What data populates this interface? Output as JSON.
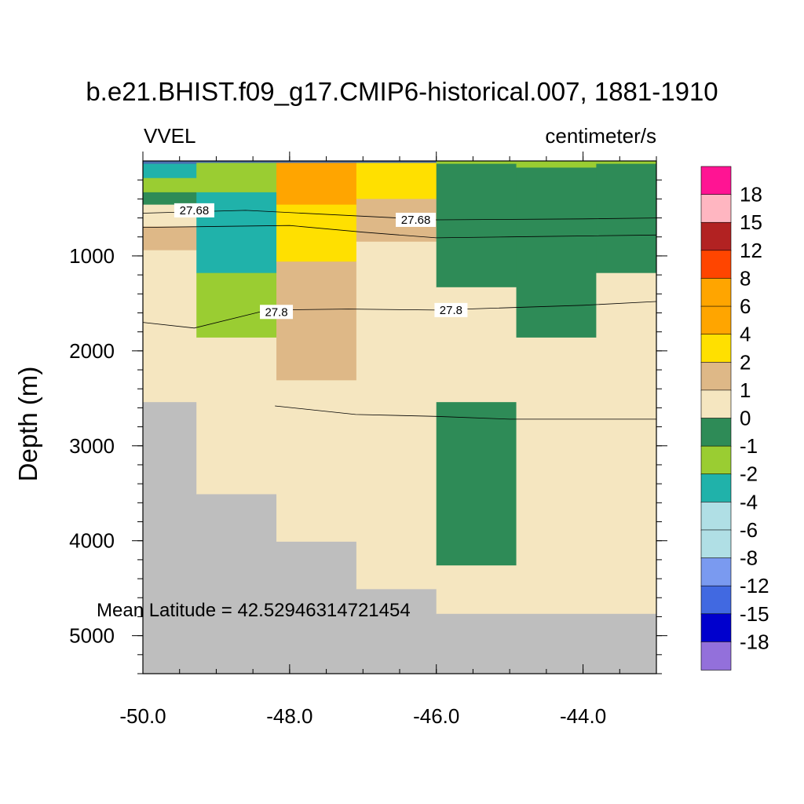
{
  "title": "b.e21.BHIST.f09_g17.CMIP6-historical.007, 1881-1910",
  "variable": "VVEL",
  "units": "centimeter/s",
  "footnote": "Mean Latitude = 42.52946314721454",
  "chart_data": {
    "type": "heatmap",
    "title": "b.e21.BHIST.f09_g17.CMIP6-historical.007, 1881-1910",
    "xlabel": "",
    "ylabel": "Depth (m)",
    "xlim": [
      -50.0,
      -43.0
    ],
    "ylim": [
      0,
      5400
    ],
    "y_reversed": true,
    "x_ticks": [
      -50.0,
      -48.0,
      -46.0,
      -44.0
    ],
    "x_tick_labels": [
      "-50.0",
      "-48.0",
      "-46.0",
      "-44.0"
    ],
    "y_ticks": [
      1000,
      2000,
      3000,
      4000,
      5000
    ],
    "y_tick_labels": [
      "1000",
      "2000",
      "3000",
      "4000",
      "5000"
    ],
    "x_minor_step": 0.5,
    "y_minor_step": 200,
    "colorbar": {
      "colors": [
        "#9370db",
        "#0000cd",
        "#4169e1",
        "#7a9af0",
        "#b0dfe5",
        "#b0dfe5",
        "#20b2aa",
        "#9acd32",
        "#2e8b57",
        "#f5e6c0",
        "#deb887",
        "#ffe000",
        "#ffa500",
        "#ffa500",
        "#ff4500",
        "#b22222",
        "#ffb6c1",
        "#ff1493"
      ],
      "labels": [
        "-18",
        "-15",
        "-12",
        "-8",
        "-6",
        "-4",
        "-2",
        "-1",
        "0",
        "1",
        "2",
        "4",
        "6",
        "8",
        "12",
        "15",
        "18"
      ]
    },
    "missing_color": "#bebebe",
    "cells": [
      {
        "x0": -50.0,
        "x1": -49.27,
        "d0": 0,
        "d1": 30,
        "c": "#4a6fb0"
      },
      {
        "x0": -50.0,
        "x1": -49.27,
        "d0": 30,
        "d1": 180,
        "c": "#20b2aa"
      },
      {
        "x0": -50.0,
        "x1": -49.27,
        "d0": 180,
        "d1": 330,
        "c": "#9acd32"
      },
      {
        "x0": -50.0,
        "x1": -49.27,
        "d0": 330,
        "d1": 460,
        "c": "#2e8b57"
      },
      {
        "x0": -50.0,
        "x1": -49.27,
        "d0": 460,
        "d1": 690,
        "c": "#f5e6c0"
      },
      {
        "x0": -50.0,
        "x1": -49.27,
        "d0": 690,
        "d1": 940,
        "c": "#deb887"
      },
      {
        "x0": -50.0,
        "x1": -49.27,
        "d0": 940,
        "d1": 2540,
        "c": "#f5e6c0"
      },
      {
        "x0": -50.0,
        "x1": -49.27,
        "d0": 2540,
        "d1": 5400,
        "c": "#bebebe"
      },
      {
        "x0": -49.27,
        "x1": -48.18,
        "d0": 0,
        "d1": 20,
        "c": "#4a6fb0"
      },
      {
        "x0": -49.27,
        "x1": -48.18,
        "d0": 20,
        "d1": 330,
        "c": "#9acd32"
      },
      {
        "x0": -49.27,
        "x1": -48.18,
        "d0": 330,
        "d1": 1180,
        "c": "#20b2aa"
      },
      {
        "x0": -49.27,
        "x1": -48.18,
        "d0": 1180,
        "d1": 1860,
        "c": "#9acd32"
      },
      {
        "x0": -49.27,
        "x1": -48.18,
        "d0": 1860,
        "d1": 3510,
        "c": "#f5e6c0"
      },
      {
        "x0": -49.27,
        "x1": -48.18,
        "d0": 3510,
        "d1": 5400,
        "c": "#bebebe"
      },
      {
        "x0": -48.18,
        "x1": -47.09,
        "d0": 0,
        "d1": 20,
        "c": "#4a6fb0"
      },
      {
        "x0": -48.18,
        "x1": -47.09,
        "d0": 20,
        "d1": 460,
        "c": "#ffa500"
      },
      {
        "x0": -48.18,
        "x1": -47.09,
        "d0": 460,
        "d1": 1060,
        "c": "#ffe000"
      },
      {
        "x0": -48.18,
        "x1": -47.09,
        "d0": 1060,
        "d1": 2310,
        "c": "#deb887"
      },
      {
        "x0": -48.18,
        "x1": -47.09,
        "d0": 2310,
        "d1": 4010,
        "c": "#f5e6c0"
      },
      {
        "x0": -48.18,
        "x1": -47.09,
        "d0": 4010,
        "d1": 5400,
        "c": "#bebebe"
      },
      {
        "x0": -47.09,
        "x1": -46.0,
        "d0": 0,
        "d1": 20,
        "c": "#4a6fb0"
      },
      {
        "x0": -47.09,
        "x1": -46.0,
        "d0": 20,
        "d1": 400,
        "c": "#ffe000"
      },
      {
        "x0": -47.09,
        "x1": -46.0,
        "d0": 400,
        "d1": 850,
        "c": "#deb887"
      },
      {
        "x0": -47.09,
        "x1": -46.0,
        "d0": 850,
        "d1": 4510,
        "c": "#f5e6c0"
      },
      {
        "x0": -47.09,
        "x1": -46.0,
        "d0": 4510,
        "d1": 5400,
        "c": "#bebebe"
      },
      {
        "x0": -46.0,
        "x1": -44.91,
        "d0": 0,
        "d1": 30,
        "c": "#9acd32"
      },
      {
        "x0": -46.0,
        "x1": -44.91,
        "d0": 30,
        "d1": 1330,
        "c": "#2e8b57"
      },
      {
        "x0": -46.0,
        "x1": -44.91,
        "d0": 1330,
        "d1": 2540,
        "c": "#f5e6c0"
      },
      {
        "x0": -46.0,
        "x1": -44.91,
        "d0": 2540,
        "d1": 4260,
        "c": "#2e8b57"
      },
      {
        "x0": -46.0,
        "x1": -44.91,
        "d0": 4260,
        "d1": 4770,
        "c": "#f5e6c0"
      },
      {
        "x0": -46.0,
        "x1": -44.91,
        "d0": 4770,
        "d1": 5400,
        "c": "#bebebe"
      },
      {
        "x0": -44.91,
        "x1": -43.82,
        "d0": 0,
        "d1": 70,
        "c": "#9acd32"
      },
      {
        "x0": -44.91,
        "x1": -43.82,
        "d0": 70,
        "d1": 1860,
        "c": "#2e8b57"
      },
      {
        "x0": -44.91,
        "x1": -43.82,
        "d0": 1860,
        "d1": 4770,
        "c": "#f5e6c0"
      },
      {
        "x0": -44.91,
        "x1": -43.82,
        "d0": 4770,
        "d1": 5400,
        "c": "#bebebe"
      },
      {
        "x0": -43.82,
        "x1": -43.0,
        "d0": 0,
        "d1": 30,
        "c": "#9acd32"
      },
      {
        "x0": -43.82,
        "x1": -43.0,
        "d0": 30,
        "d1": 1180,
        "c": "#2e8b57"
      },
      {
        "x0": -43.82,
        "x1": -43.0,
        "d0": 1180,
        "d1": 4770,
        "c": "#f5e6c0"
      },
      {
        "x0": -43.82,
        "x1": -43.0,
        "d0": 4770,
        "d1": 5400,
        "c": "#bebebe"
      }
    ],
    "contours": [
      {
        "level": "27.68",
        "points": [
          [
            -50.0,
            550
          ],
          [
            -48.6,
            520
          ],
          [
            -46.0,
            620
          ],
          [
            -44.0,
            610
          ],
          [
            -43.0,
            600
          ]
        ]
      },
      {
        "level": "",
        "points": [
          [
            -50.0,
            700
          ],
          [
            -48.0,
            680
          ],
          [
            -47.0,
            750
          ],
          [
            -46.0,
            810
          ],
          [
            -45.0,
            800
          ],
          [
            -43.0,
            780
          ]
        ]
      },
      {
        "level": "27.8",
        "points": [
          [
            -50.0,
            1700
          ],
          [
            -49.3,
            1760
          ],
          [
            -48.3,
            1570
          ],
          [
            -47.2,
            1560
          ],
          [
            -46.0,
            1570
          ],
          [
            -44.0,
            1520
          ],
          [
            -43.0,
            1480
          ]
        ]
      },
      {
        "level": "",
        "points": [
          [
            -48.2,
            2580
          ],
          [
            -47.1,
            2670
          ],
          [
            -46.0,
            2690
          ],
          [
            -45.0,
            2720
          ],
          [
            -43.0,
            2720
          ]
        ]
      }
    ],
    "contour_labels": [
      {
        "text": "27.68",
        "x": -49.3,
        "d": 520
      },
      {
        "text": "27.68",
        "x": -46.28,
        "d": 620
      },
      {
        "text": "27.8",
        "x": -48.18,
        "d": 1590
      },
      {
        "text": "27.8",
        "x": -45.8,
        "d": 1570
      }
    ]
  }
}
